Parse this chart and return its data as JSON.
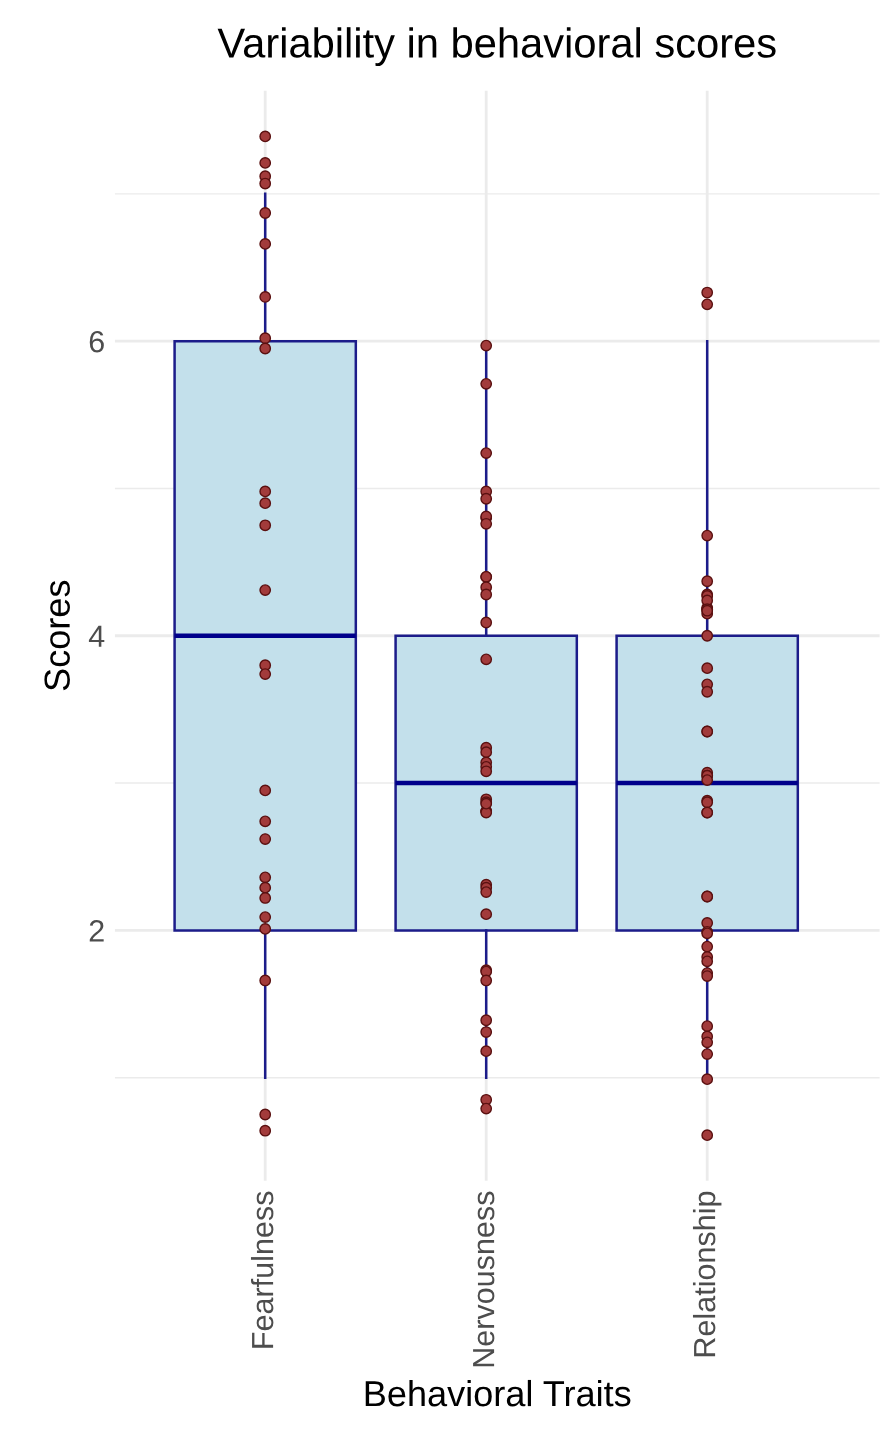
{
  "chart_data": {
    "type": "box",
    "title": "Variability in behavioral scores",
    "xlabel": "Behavioral Traits",
    "ylabel": "Scores",
    "categories": [
      "Fearfulness",
      "Nervousness",
      "Relationship"
    ],
    "series": [
      {
        "color": "#c3e0eb",
        "boxes": [
          {
            "low": 1,
            "q1": 2,
            "median": 4,
            "q3": 6,
            "high": 7
          },
          {
            "low": 1,
            "q1": 2,
            "median": 3,
            "q3": 4,
            "high": 6
          },
          {
            "low": 1,
            "q1": 2,
            "median": 3,
            "q3": 4,
            "high": 6
          }
        ]
      },
      {
        "type": "scatter",
        "color": "#a23b3b",
        "x": [
          "Fearfulness",
          "Fearfulness",
          "Fearfulness",
          "Fearfulness",
          "Fearfulness",
          "Fearfulness",
          "Fearfulness",
          "Fearfulness",
          "Fearfulness",
          "Fearfulness",
          "Fearfulness",
          "Fearfulness",
          "Fearfulness",
          "Fearfulness",
          "Fearfulness",
          "Fearfulness",
          "Fearfulness",
          "Fearfulness",
          "Fearfulness",
          "Fearfulness",
          "Fearfulness",
          "Fearfulness",
          "Fearfulness",
          "Fearfulness",
          "Fearfulness",
          "Fearfulness",
          "Nervousness",
          "Nervousness",
          "Nervousness",
          "Nervousness",
          "Nervousness",
          "Nervousness",
          "Nervousness",
          "Nervousness",
          "Nervousness",
          "Nervousness",
          "Nervousness",
          "Nervousness",
          "Nervousness",
          "Nervousness",
          "Nervousness",
          "Nervousness",
          "Nervousness",
          "Nervousness",
          "Nervousness",
          "Nervousness",
          "Nervousness",
          "Nervousness",
          "Nervousness",
          "Nervousness",
          "Nervousness",
          "Nervousness",
          "Nervousness",
          "Nervousness",
          "Nervousness",
          "Nervousness",
          "Nervousness",
          "Nervousness",
          "Nervousness",
          "Nervousness",
          "Nervousness",
          "Nervousness",
          "Nervousness",
          "Relationship",
          "Relationship",
          "Relationship",
          "Relationship",
          "Relationship",
          "Relationship",
          "Relationship",
          "Relationship",
          "Relationship",
          "Relationship",
          "Relationship",
          "Relationship",
          "Relationship",
          "Relationship",
          "Relationship",
          "Relationship",
          "Relationship",
          "Relationship",
          "Relationship",
          "Relationship",
          "Relationship",
          "Relationship",
          "Relationship",
          "Relationship",
          "Relationship",
          "Relationship",
          "Relationship",
          "Relationship",
          "Relationship",
          "Relationship",
          "Relationship",
          "Relationship",
          "Relationship",
          "Relationship",
          "Relationship",
          "Relationship",
          "Relationship",
          "Relationship",
          "Relationship",
          "Relationship",
          "Relationship",
          "Relationship"
        ],
        "values": [
          7.39,
          7.21,
          7.12,
          7.07,
          6.87,
          6.66,
          6.3,
          6.02,
          5.95,
          4.98,
          4.9,
          4.75,
          4.31,
          3.8,
          3.74,
          2.95,
          2.74,
          2.62,
          2.36,
          2.29,
          2.22,
          2.09,
          2.01,
          1.66,
          0.75,
          0.64,
          5.97,
          5.71,
          5.24,
          4.98,
          4.93,
          4.8,
          4.81,
          4.76,
          4.4,
          4.4,
          4.33,
          4.28,
          4.09,
          3.84,
          3.24,
          3.21,
          3.14,
          3.11,
          3.08,
          2.89,
          2.87,
          2.81,
          2.81,
          2.8,
          2.86,
          2.31,
          2.29,
          2.26,
          2.11,
          1.73,
          1.72,
          1.66,
          1.39,
          1.31,
          1.18,
          0.85,
          0.79,
          6.33,
          6.25,
          4.68,
          4.37,
          4.28,
          4.27,
          4.19,
          4.18,
          4.24,
          4.18,
          4.15,
          4.17,
          4.0,
          3.78,
          3.67,
          3.62,
          3.35,
          3.35,
          3.07,
          3.05,
          3.05,
          3.02,
          2.88,
          2.87,
          2.8,
          2.8,
          2.23,
          2.23,
          2.05,
          1.99,
          1.98,
          1.89,
          1.82,
          1.79,
          1.71,
          1.69,
          1.35,
          1.28,
          1.24,
          1.16,
          0.99,
          0.61
        ]
      }
    ],
    "ylim": [
      0.3,
      7.7
    ],
    "yticks": [
      {
        "value": 1,
        "label": null
      },
      2,
      {
        "value": 3,
        "label": null
      },
      4,
      {
        "value": 5,
        "label": null
      },
      6,
      {
        "value": 7,
        "label": null
      }
    ],
    "grid": true,
    "legend": false
  }
}
